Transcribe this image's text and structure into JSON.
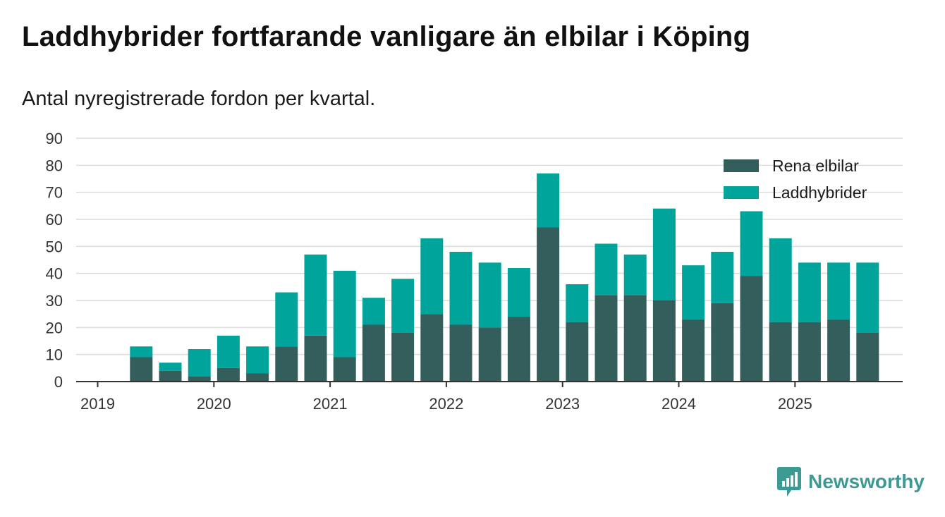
{
  "colors": {
    "rena_elbilar": "#335e5b",
    "laddhybrider": "#00a49a",
    "grid": "#dcdcdc",
    "axis": "#333333",
    "brand": "#3d9a93"
  },
  "brand": {
    "name": "Newsworthy",
    "icon": "bar-chart-badge-icon"
  },
  "chart_data": {
    "type": "bar",
    "stacked": true,
    "title": "Laddhybrider fortfarande vanligare än elbilar i Köping",
    "subtitle": "Antal nyregistrerade fordon per kvartal.",
    "xlabel": "",
    "ylabel": "",
    "ylim": [
      0,
      90
    ],
    "yticks": [
      0,
      10,
      20,
      30,
      40,
      50,
      60,
      70,
      80,
      90
    ],
    "grid": true,
    "legend_position": "top-right",
    "year_ticks": [
      "2019",
      "2020",
      "2021",
      "2022",
      "2023",
      "2024",
      "2025"
    ],
    "categories": [
      "2019 Q1",
      "2019 Q2",
      "2019 Q3",
      "2019 Q4",
      "2020 Q1",
      "2020 Q2",
      "2020 Q3",
      "2020 Q4",
      "2021 Q1",
      "2021 Q2",
      "2021 Q3",
      "2021 Q4",
      "2022 Q1",
      "2022 Q2",
      "2022 Q3",
      "2022 Q4",
      "2023 Q1",
      "2023 Q2",
      "2023 Q3",
      "2023 Q4",
      "2024 Q1",
      "2024 Q2",
      "2024 Q3",
      "2024 Q4",
      "2025 Q1",
      "2025 Q2",
      "2025 Q3"
    ],
    "series": [
      {
        "name": "Rena elbilar",
        "color_key": "rena_elbilar",
        "values": [
          null,
          9,
          4,
          2,
          5,
          3,
          13,
          17,
          9,
          21,
          18,
          25,
          21,
          20,
          24,
          57,
          22,
          32,
          32,
          30,
          23,
          29,
          39,
          22,
          22,
          23,
          18
        ]
      },
      {
        "name": "Laddhybrider",
        "color_key": "laddhybrider",
        "values": [
          null,
          4,
          3,
          10,
          12,
          10,
          20,
          30,
          32,
          10,
          20,
          28,
          27,
          24,
          18,
          20,
          14,
          19,
          15,
          34,
          20,
          19,
          24,
          31,
          22,
          21,
          26
        ]
      }
    ]
  }
}
